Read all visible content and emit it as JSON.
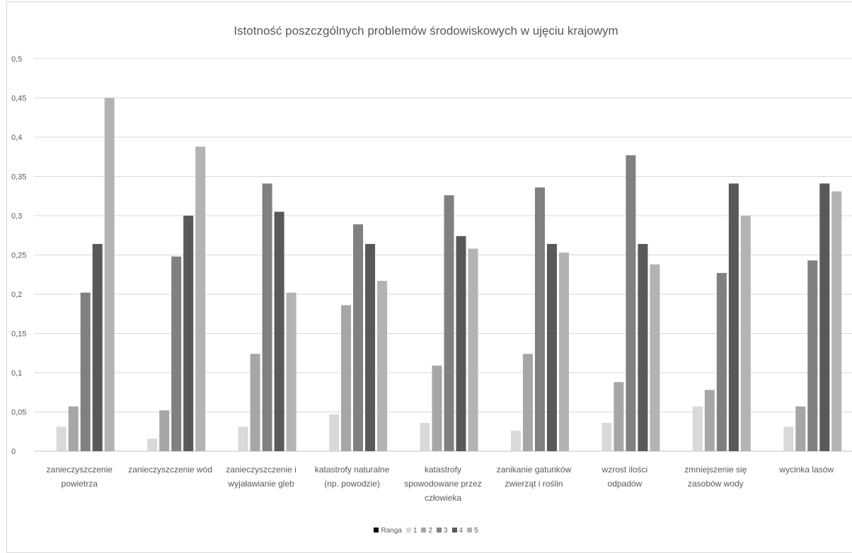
{
  "chart_data": {
    "type": "bar",
    "title": "Istotność poszczgólnych problemów środowiskowych w ujęciu krajowym",
    "xlabel": "",
    "ylabel": "",
    "ylim": [
      0,
      0.5
    ],
    "yticks": [
      "0",
      "0,05",
      "0,1",
      "0,15",
      "0,2",
      "0,25",
      "0,3",
      "0,35",
      "0,4",
      "0,45",
      "0,5"
    ],
    "grid": true,
    "legend_position": "bottom",
    "categories": [
      [
        "zanieczyszczenie",
        "powietrza"
      ],
      [
        "zanieczyszczenie wód"
      ],
      [
        "zanieczyszczenie i",
        "wyjaławianie gleb"
      ],
      [
        "katastrofy naturalne",
        "(np. powodzie)"
      ],
      [
        "katastrofy",
        "spowodowane przez",
        "człowieka"
      ],
      [
        "zanikanie gatunków",
        "zwierząt i roślin"
      ],
      [
        "wzrost ilości",
        "odpadów"
      ],
      [
        "zmniejszenie się",
        "zasobów wody"
      ],
      [
        "wycinka lasów"
      ]
    ],
    "series": [
      {
        "name": "Ranga",
        "color": "#000000",
        "values": [
          0,
          0,
          0,
          0,
          0,
          0,
          0,
          0,
          0
        ]
      },
      {
        "name": "1",
        "color": "#d9d9d9",
        "values": [
          0.031,
          0.016,
          0.031,
          0.047,
          0.036,
          0.026,
          0.036,
          0.057,
          0.031
        ]
      },
      {
        "name": "2",
        "color": "#a6a6a6",
        "values": [
          0.057,
          0.052,
          0.124,
          0.186,
          0.109,
          0.124,
          0.088,
          0.078,
          0.057
        ]
      },
      {
        "name": "3",
        "color": "#808080",
        "values": [
          0.202,
          0.248,
          0.341,
          0.289,
          0.326,
          0.336,
          0.377,
          0.227,
          0.243
        ]
      },
      {
        "name": "4",
        "color": "#595959",
        "values": [
          0.264,
          0.3,
          0.305,
          0.264,
          0.274,
          0.264,
          0.264,
          0.341,
          0.341
        ]
      },
      {
        "name": "5",
        "color": "#b3b3b3",
        "values": [
          0.45,
          0.388,
          0.202,
          0.217,
          0.258,
          0.253,
          0.238,
          0.3,
          0.331
        ]
      }
    ]
  }
}
